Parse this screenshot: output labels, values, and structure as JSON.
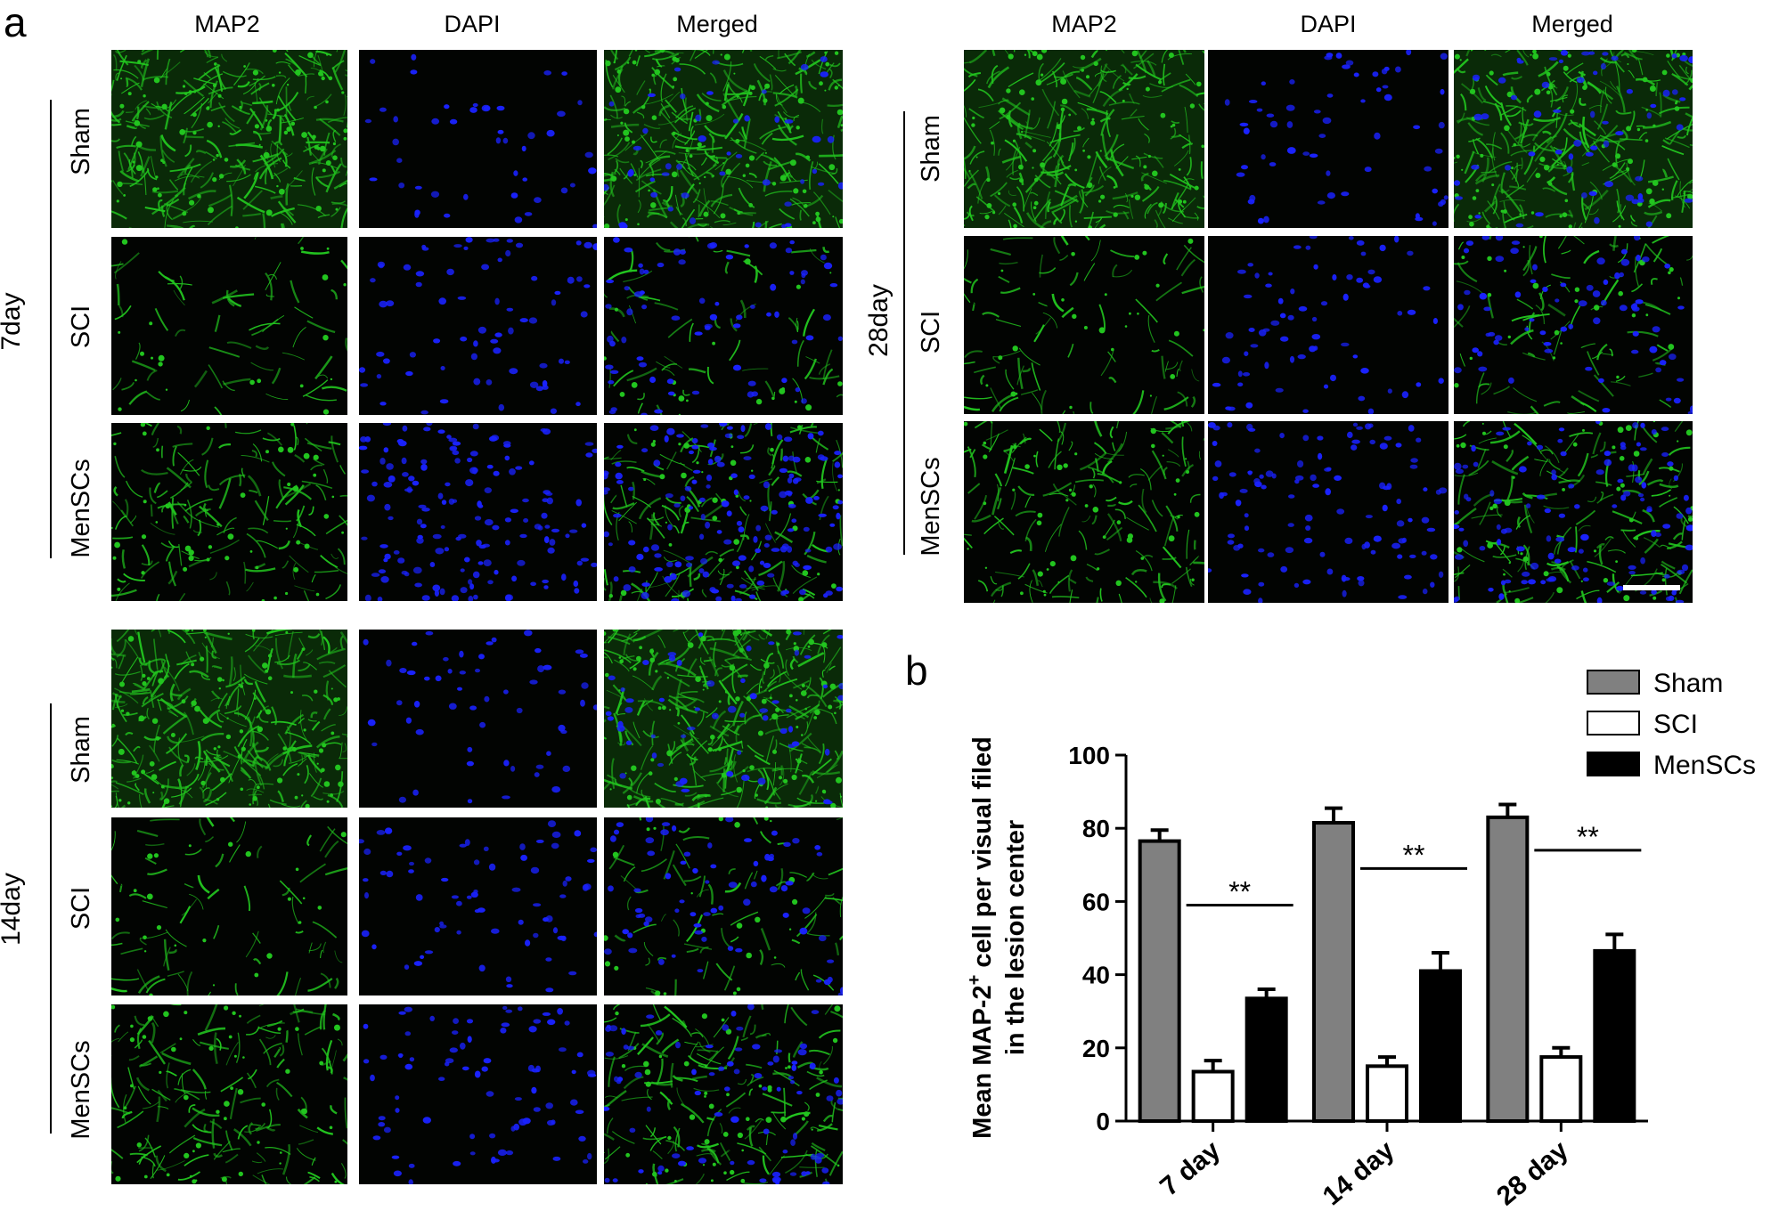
{
  "panel_a": {
    "letter": "a",
    "column_headers": [
      "MAP2",
      "DAPI",
      "Merged"
    ],
    "row_labels": [
      "Sham",
      "SCI",
      "MenSCs"
    ],
    "groups": [
      {
        "label": "7day"
      },
      {
        "label": "14day"
      },
      {
        "label": "28day"
      }
    ],
    "colors": {
      "map2": "#22c41f",
      "dapi": "#1a22ff",
      "background": "#000000"
    }
  },
  "panel_b": {
    "letter": "b"
  },
  "chart_data": {
    "type": "bar",
    "categories": [
      "7 day",
      "14 day",
      "28 day"
    ],
    "series": [
      {
        "name": "Sham",
        "values": [
          76.5,
          81.5,
          83
        ],
        "errors": [
          3,
          4,
          3.5
        ],
        "color": "#808080"
      },
      {
        "name": "SCI",
        "values": [
          13.5,
          15,
          17.5
        ],
        "errors": [
          3,
          2.5,
          2.5
        ],
        "color": "#ffffff"
      },
      {
        "name": "MenSCs",
        "values": [
          33.5,
          41,
          46.5
        ],
        "errors": [
          2.5,
          5,
          4.5
        ],
        "color": "#000000"
      }
    ],
    "ylabel_line1": "Mean MAP-2",
    "ylabel_sup": "+",
    "ylabel_line1_rest": " cell per visual filed",
    "ylabel_line2": "in the lesion center",
    "xlabel": "",
    "ylim": [
      0,
      100
    ],
    "yticks": [
      0,
      20,
      40,
      60,
      80,
      100
    ],
    "significance": [
      {
        "category": "7 day",
        "label": "**"
      },
      {
        "category": "14 day",
        "label": "**"
      },
      {
        "category": "28 day",
        "label": "**"
      }
    ],
    "legend_position": "top-right",
    "grid": false
  }
}
